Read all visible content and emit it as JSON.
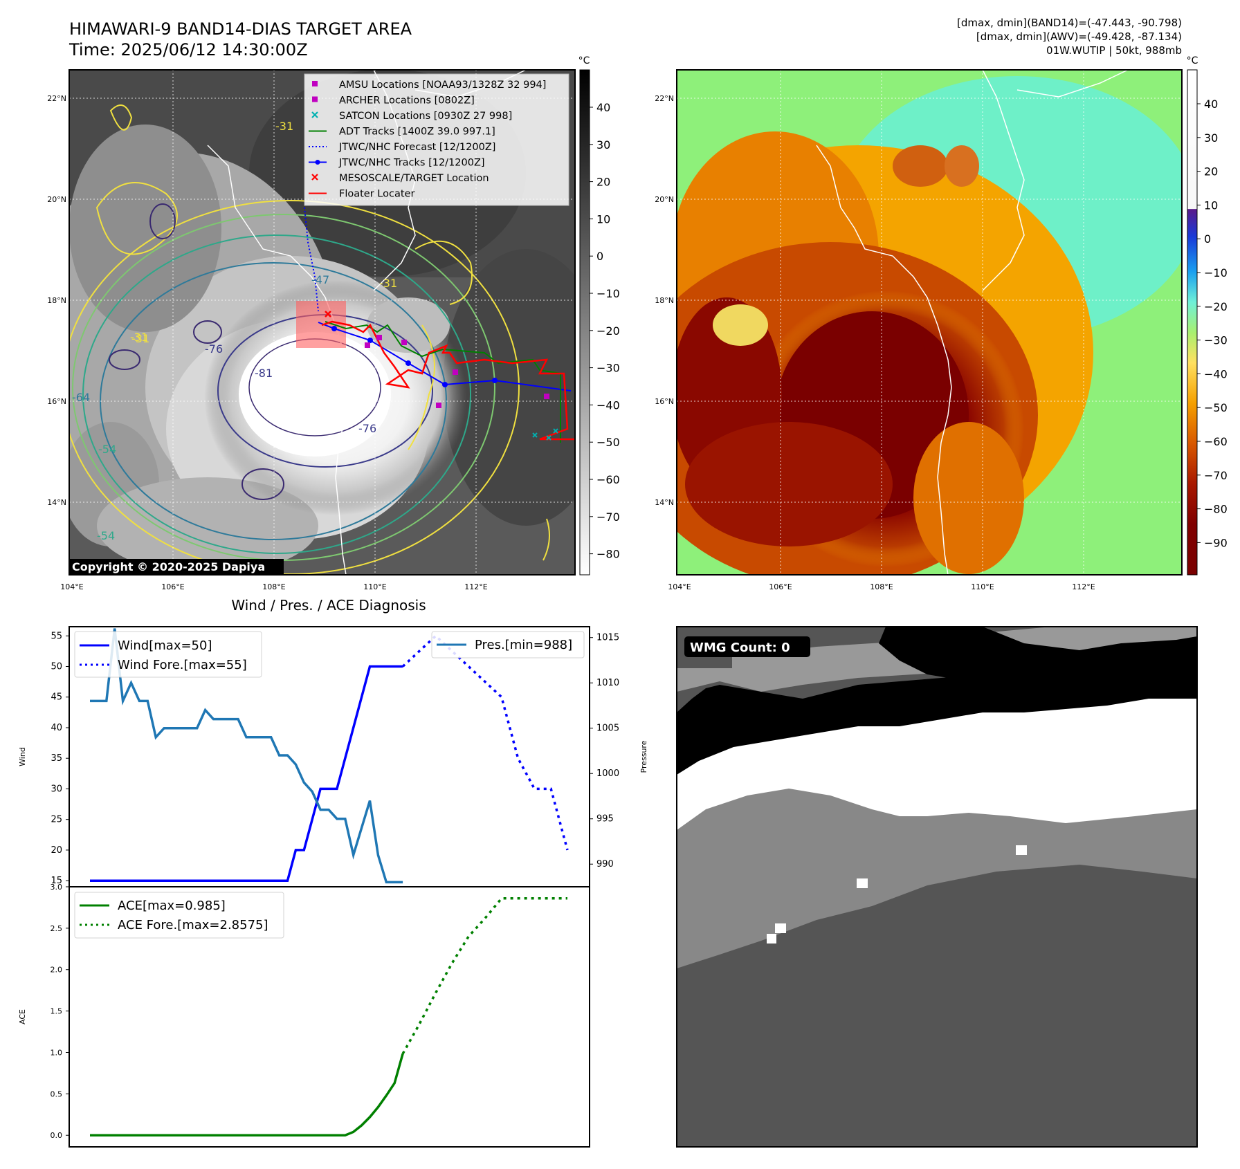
{
  "header": {
    "title_line1": "HIMAWARI-9 BAND14-DIAS TARGET AREA",
    "title_line2": "Time: 2025/06/12 14:30:00Z",
    "info_line1": "[dmax, dmin](BAND14)=(-47.443, -90.798)",
    "info_line2": "[dmax, dmin](AWV)=(-49.428, -87.134)",
    "info_line3": "01W.WUTIP | 50kt, 988mb"
  },
  "copyright": "Copyright © 2020-2025 Dapiya",
  "map_axes": {
    "lon_labels": [
      "104°E",
      "106°E",
      "108°E",
      "110°E",
      "112°E"
    ],
    "lat_labels": [
      "14°N",
      "16°N",
      "18°N",
      "20°N",
      "22°N"
    ]
  },
  "ir_panel": {
    "colorbar_unit": "°C",
    "colorbar_ticks": [
      "40",
      "30",
      "20",
      "10",
      "0",
      "−10",
      "−20",
      "−30",
      "−40",
      "−50",
      "−60",
      "−70",
      "−80"
    ],
    "contour_labels": [
      "-31",
      "-31",
      "-31",
      "-47",
      "-76",
      "-81",
      "-76",
      "-54",
      "-54",
      "-64",
      "-31"
    ],
    "legend": [
      {
        "label": "AMSU Locations [NOAA93/1328Z 32 994]",
        "color": "#c000c0",
        "marker": "square"
      },
      {
        "label": "ARCHER Locations [0802Z]",
        "color": "#c000c0",
        "marker": "square"
      },
      {
        "label": "SATCON Locations [0930Z 27 998]",
        "color": "#00b0b0",
        "marker": "x"
      },
      {
        "label": "ADT Tracks [1400Z 39.0 997.1]",
        "color": "#008000",
        "marker": "line"
      },
      {
        "label": "JTWC/NHC Forecast [12/1200Z]",
        "color": "#0000ff",
        "marker": "dotted"
      },
      {
        "label": "JTWC/NHC Tracks [12/1200Z]",
        "color": "#0000ff",
        "marker": "line-dot"
      },
      {
        "label": "MESOSCALE/TARGET Location",
        "color": "#ff0000",
        "marker": "x"
      },
      {
        "label": "Floater Locater",
        "color": "#ff0000",
        "marker": "line"
      }
    ]
  },
  "awv_panel": {
    "colorbar_unit": "°C",
    "colorbar_ticks": [
      "40",
      "30",
      "20",
      "10",
      "0",
      "−10",
      "−20",
      "−30",
      "−40",
      "−50",
      "−60",
      "−70",
      "−80",
      "−90"
    ]
  },
  "wmg_panel": {
    "label": "WMG Count: 0"
  },
  "chart_data": [
    {
      "type": "line",
      "title": "Wind / Pres. / ACE Diagnosis",
      "ylabel": "Wind",
      "ylabel_right": "Pressure",
      "ylim": [
        14,
        56.5
      ],
      "ylim_right": [
        987.5,
        1016.2
      ],
      "yticks": [
        15,
        20,
        25,
        30,
        35,
        40,
        45,
        50,
        55
      ],
      "yticks_right": [
        990,
        995,
        1000,
        1005,
        1010,
        1015
      ],
      "legend_left": [
        "Wind[max=50]",
        "Wind Fore.[max=55]"
      ],
      "legend_right": [
        "Pres.[min=988]"
      ],
      "series": [
        {
          "name": "Wind[max=50]",
          "color": "#0000ff",
          "style": "solid",
          "x": [
            0,
            1,
            2,
            3,
            4,
            5,
            6,
            7,
            8,
            9,
            10,
            11,
            12,
            13,
            14,
            15,
            16,
            17,
            18,
            19,
            20,
            21,
            22,
            23,
            24,
            25,
            26,
            27,
            28,
            29,
            30,
            31,
            32,
            33,
            34,
            35,
            36,
            37,
            38
          ],
          "values": [
            15,
            15,
            15,
            15,
            15,
            15,
            15,
            15,
            15,
            15,
            15,
            15,
            15,
            15,
            15,
            15,
            15,
            15,
            15,
            15,
            15,
            15,
            15,
            15,
            15,
            20,
            20,
            25,
            30,
            30,
            30,
            35,
            40,
            45,
            50,
            50,
            50,
            50,
            50
          ]
        },
        {
          "name": "Wind Fore.[max=55]",
          "color": "#0000ff",
          "style": "dotted",
          "x": [
            38,
            40,
            42,
            44,
            46,
            48,
            50,
            52,
            54,
            56,
            58
          ],
          "values": [
            50,
            52.5,
            55,
            52.5,
            50,
            47.5,
            45,
            35,
            30,
            30,
            20
          ]
        },
        {
          "name": "Pres.[min=988]",
          "color": "#1f77b4",
          "style": "solid",
          "axis": "right",
          "x": [
            0,
            1,
            2,
            3,
            4,
            5,
            6,
            7,
            8,
            9,
            10,
            11,
            12,
            13,
            14,
            15,
            16,
            17,
            18,
            19,
            20,
            21,
            22,
            23,
            24,
            25,
            26,
            27,
            28,
            29,
            30,
            31,
            32,
            33,
            34,
            35,
            36,
            37,
            38
          ],
          "values": [
            1008,
            1008,
            1008,
            1016,
            1008,
            1010,
            1008,
            1008,
            1004,
            1005,
            1005,
            1005,
            1005,
            1005,
            1007,
            1006,
            1006,
            1006,
            1006,
            1004,
            1004,
            1004,
            1004,
            1002,
            1002,
            1001,
            999,
            998,
            996,
            996,
            995,
            995,
            991,
            994,
            997,
            991,
            988,
            988,
            988
          ]
        }
      ]
    },
    {
      "type": "line",
      "ylabel": "ACE",
      "ylim": [
        -0.14,
        3.0
      ],
      "yticks": [
        "0.0",
        "0.5",
        "1.0",
        "1.5",
        "2.0",
        "2.5",
        "3.0"
      ],
      "legend": [
        "ACE[max=0.985]",
        "ACE Fore.[max=2.8575]"
      ],
      "series": [
        {
          "name": "ACE[max=0.985]",
          "color": "#008000",
          "style": "solid",
          "x": [
            0,
            5,
            10,
            15,
            20,
            25,
            31,
            32,
            33,
            34,
            35,
            36,
            37,
            38
          ],
          "values": [
            0,
            0,
            0,
            0,
            0,
            0,
            0,
            0.04,
            0.12,
            0.22,
            0.34,
            0.48,
            0.63,
            0.985
          ]
        },
        {
          "name": "ACE Fore.[max=2.8575]",
          "color": "#008000",
          "style": "dotted",
          "x": [
            38,
            40,
            42,
            44,
            46,
            48,
            50,
            52,
            54,
            56,
            58
          ],
          "values": [
            0.985,
            1.34,
            1.72,
            2.08,
            2.4,
            2.62,
            2.86,
            2.86,
            2.86,
            2.86,
            2.86
          ]
        }
      ]
    }
  ]
}
